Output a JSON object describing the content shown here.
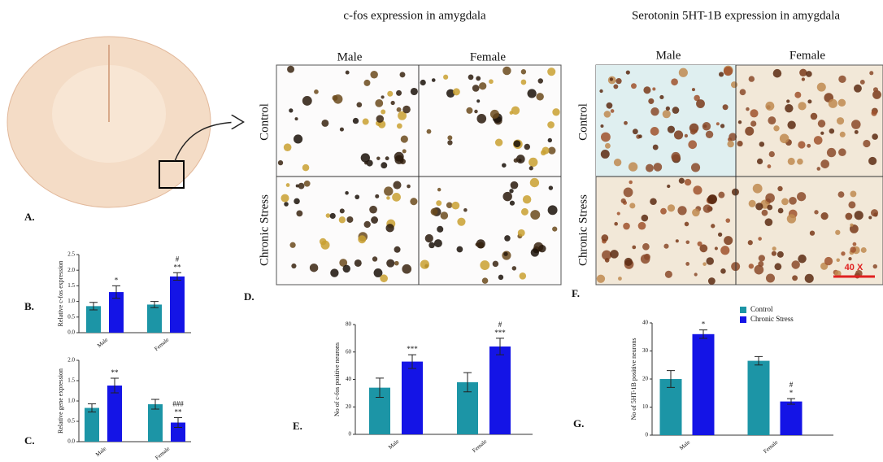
{
  "figure": {
    "title_cfos": "c-fos expression in amygdala",
    "title_5ht": "Serotonin 5HT-1B expression in amygdala",
    "d_col_male": "Male",
    "d_col_female": "Female",
    "d_row_control": "Control",
    "d_row_stress": "Chronic Stress",
    "f_col_male": "Male",
    "f_col_female": "Female",
    "f_row_control": "Control",
    "f_row_stress": "Chronic Stress",
    "scale_label": "40 X",
    "label_a": "A.",
    "label_b": "B.",
    "label_c": "C.",
    "label_d": "D.",
    "label_e": "E.",
    "label_f": "F.",
    "label_g": "G."
  },
  "chart_data": [
    {
      "type": "bar",
      "ylabel": "Relative c-fos expression",
      "categories": [
        "Male",
        "Female"
      ],
      "ylim": [
        0,
        2.5
      ],
      "yticks": [
        {
          "value": 0,
          "label": "0.0"
        },
        0.5,
        {
          "value": 1,
          "label": "1.0"
        },
        1.5,
        {
          "value": 2,
          "label": "2.0"
        },
        2.5
      ],
      "series": [
        {
          "name": "Control",
          "color": "#1c95a6",
          "values": [
            0.85,
            0.9
          ],
          "errors": [
            0.12,
            0.1
          ],
          "significance": [
            null,
            null
          ]
        },
        {
          "name": "Chronic Stress",
          "color": "#1414e6",
          "values": [
            1.3,
            1.8
          ],
          "errors": [
            0.2,
            0.12
          ],
          "significance": [
            [
              "*"
            ],
            [
              "#",
              "**"
            ]
          ]
        }
      ]
    },
    {
      "type": "bar",
      "ylabel": "Relative gene expression",
      "categories": [
        "Male",
        "Female"
      ],
      "ylim": [
        0,
        2
      ],
      "yticks": [
        {
          "value": 0,
          "label": "0.0"
        },
        0.5,
        {
          "value": 1,
          "label": "1.0"
        },
        1.5,
        {
          "value": 2,
          "label": "2.0"
        }
      ],
      "series": [
        {
          "name": "Control",
          "color": "#1c95a6",
          "values": [
            0.83,
            0.92
          ],
          "errors": [
            0.1,
            0.12
          ],
          "significance": [
            null,
            null
          ]
        },
        {
          "name": "Chronic Stress",
          "color": "#1414e6",
          "values": [
            1.38,
            0.47
          ],
          "errors": [
            0.18,
            0.12
          ],
          "significance": [
            [
              "**"
            ],
            [
              "###",
              "**"
            ]
          ]
        }
      ]
    },
    {
      "type": "bar",
      "ylabel": "No of c-fos positive neurons",
      "categories": [
        "Male",
        "Female"
      ],
      "ylim": [
        0,
        80
      ],
      "yticks": [
        0,
        20,
        40,
        60,
        80
      ],
      "series": [
        {
          "name": "Control",
          "color": "#1c95a6",
          "values": [
            34,
            38
          ],
          "errors": [
            7,
            7
          ],
          "significance": [
            null,
            null
          ]
        },
        {
          "name": "Chronic Stress",
          "color": "#1414e6",
          "values": [
            53,
            64
          ],
          "errors": [
            5,
            6
          ],
          "significance": [
            [
              "***"
            ],
            [
              "#",
              "***"
            ]
          ]
        }
      ]
    },
    {
      "type": "bar",
      "ylabel": "No of 5HT-1B positive neurons",
      "categories": [
        "Male",
        "Female"
      ],
      "legend": true,
      "ylim": [
        0,
        40
      ],
      "yticks": [
        0,
        10,
        20,
        30,
        40
      ],
      "series": [
        {
          "name": "Control",
          "color": "#1c95a6",
          "values": [
            20,
            26.5
          ],
          "errors": [
            3,
            1.5
          ],
          "significance": [
            null,
            null
          ]
        },
        {
          "name": "Chronic Stress",
          "color": "#1414e6",
          "values": [
            36,
            12
          ],
          "errors": [
            1.5,
            1
          ],
          "significance": [
            [
              "*"
            ],
            [
              "#",
              "*"
            ]
          ]
        }
      ]
    }
  ]
}
